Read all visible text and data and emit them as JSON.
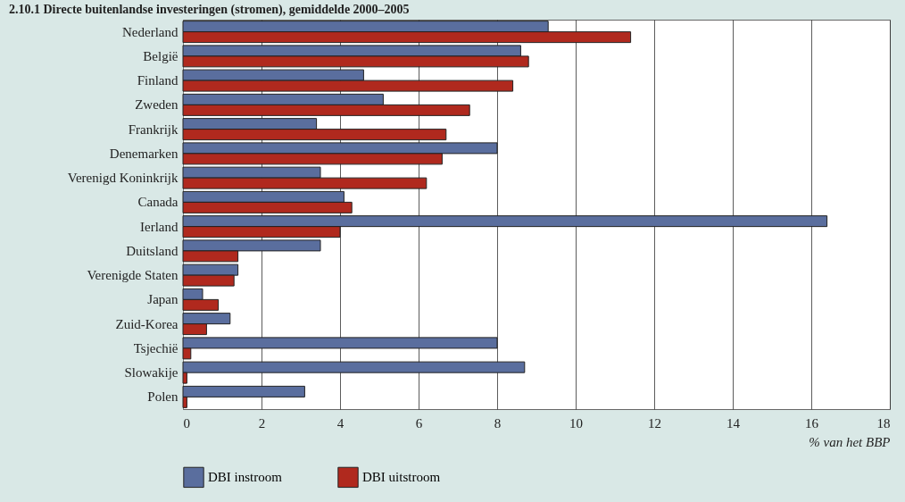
{
  "chart_data": {
    "type": "bar",
    "orientation": "horizontal",
    "title": "2.10.1  Directe buitenlandse investeringen (stromen), gemiddelde 2000–2005",
    "xlabel": "% van het BBP",
    "categories": [
      "Nederland",
      "België",
      "Finland",
      "Zweden",
      "Frankrijk",
      "Denemarken",
      "Verenigd Koninkrijk",
      "Canada",
      "Ierland",
      "Duitsland",
      "Verenigde Staten",
      "Japan",
      "Zuid-Korea",
      "Tsjechië",
      "Slowakije",
      "Polen"
    ],
    "series": [
      {
        "name": "DBI instroom",
        "color": "#5a6e9e",
        "values": [
          9.3,
          8.6,
          4.6,
          5.1,
          3.4,
          8.0,
          3.5,
          4.1,
          16.4,
          3.5,
          1.4,
          0.5,
          1.2,
          8.0,
          8.7,
          3.1
        ]
      },
      {
        "name": "DBI uitstroom",
        "color": "#b0291e",
        "values": [
          11.4,
          8.8,
          8.4,
          7.3,
          6.7,
          6.6,
          6.2,
          4.3,
          4.0,
          1.4,
          1.3,
          0.9,
          0.6,
          0.2,
          0.1,
          0.1
        ]
      }
    ],
    "xlim": [
      0,
      18
    ],
    "xticks": [
      0,
      2,
      4,
      6,
      8,
      10,
      12,
      14,
      16,
      18
    ],
    "grid": "x",
    "legend": "bottom left"
  }
}
